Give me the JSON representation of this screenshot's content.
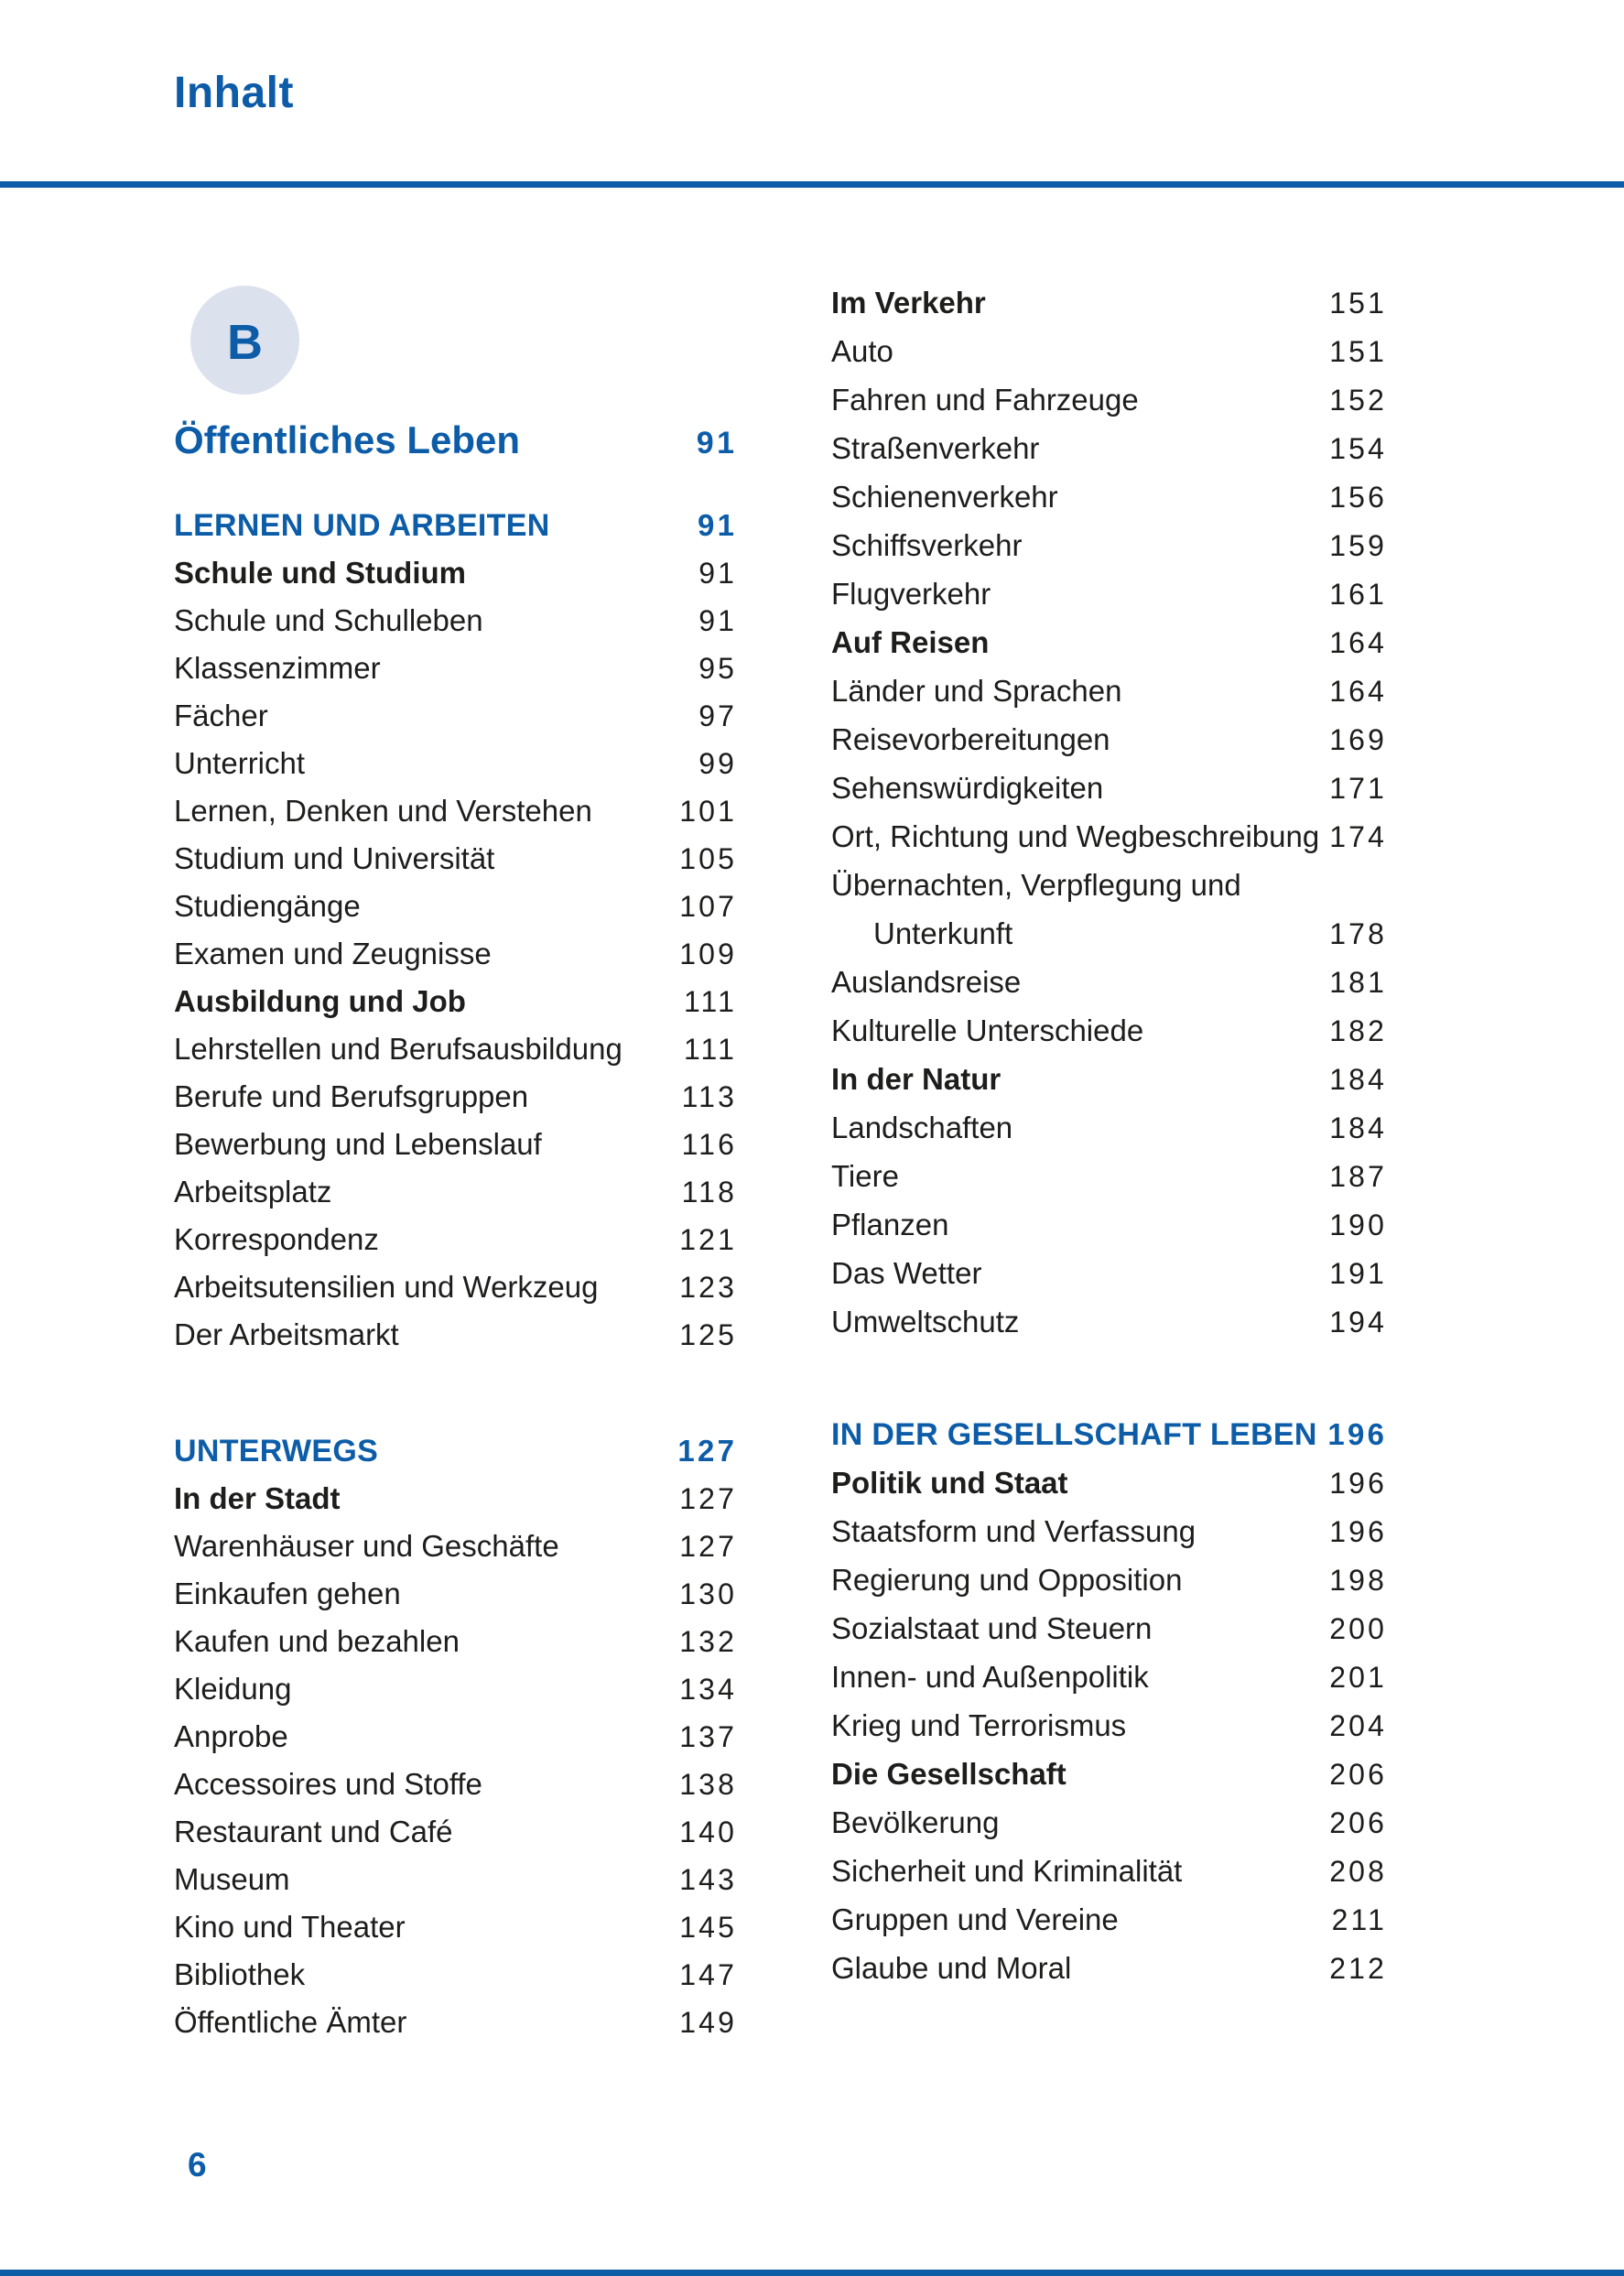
{
  "header": {
    "title": "Inhalt"
  },
  "footer": {
    "page_number": "6"
  },
  "badge": {
    "letter": "B"
  },
  "part": {
    "title": "Öffentliches Leben",
    "page": "91"
  },
  "colors": {
    "accent_blue": "#0c5ca8",
    "text_black": "#1d1d1b",
    "badge_bg": "#dce1ee"
  },
  "columns": {
    "left": {
      "sections": [
        {
          "heading": {
            "label": "LERNEN UND ARBEITEN",
            "page": "91"
          },
          "entries": [
            {
              "label": "Schule und Studium",
              "page": "91",
              "bold": true
            },
            {
              "label": "Schule und Schulleben",
              "page": "91"
            },
            {
              "label": "Klassenzimmer",
              "page": "95"
            },
            {
              "label": "Fächer",
              "page": "97"
            },
            {
              "label": "Unterricht",
              "page": "99"
            },
            {
              "label": "Lernen, Denken und Verstehen",
              "page": "101"
            },
            {
              "label": "Studium und Universität",
              "page": "105"
            },
            {
              "label": "Studiengänge",
              "page": "107"
            },
            {
              "label": "Examen und Zeugnisse",
              "page": "109"
            },
            {
              "label": "Ausbildung und Job",
              "page": "111",
              "bold": true
            },
            {
              "label": "Lehrstellen und Berufsausbildung",
              "page": "111"
            },
            {
              "label": "Berufe und Berufsgruppen",
              "page": "113"
            },
            {
              "label": "Bewerbung und Lebenslauf",
              "page": "116"
            },
            {
              "label": "Arbeitsplatz",
              "page": "118"
            },
            {
              "label": "Korrespondenz",
              "page": "121"
            },
            {
              "label": "Arbeitsutensilien und Werkzeug",
              "page": "123"
            },
            {
              "label": "Der Arbeitsmarkt",
              "page": "125"
            }
          ]
        },
        {
          "heading": {
            "label": "UNTERWEGS",
            "page": "127"
          },
          "entries": [
            {
              "label": "In der Stadt",
              "page": "127",
              "bold": true
            },
            {
              "label": "Warenhäuser und Geschäfte",
              "page": "127"
            },
            {
              "label": "Einkaufen gehen",
              "page": "130"
            },
            {
              "label": "Kaufen und bezahlen",
              "page": "132"
            },
            {
              "label": "Kleidung",
              "page": "134"
            },
            {
              "label": "Anprobe",
              "page": "137"
            },
            {
              "label": "Accessoires und Stoffe",
              "page": "138"
            },
            {
              "label": "Restaurant und Café",
              "page": "140"
            },
            {
              "label": "Museum",
              "page": "143"
            },
            {
              "label": "Kino und Theater",
              "page": "145"
            },
            {
              "label": "Bibliothek",
              "page": "147"
            },
            {
              "label": "Öffentliche Ämter",
              "page": "149"
            }
          ]
        }
      ]
    },
    "right": {
      "sections": [
        {
          "heading": null,
          "entries": [
            {
              "label": "Im Verkehr",
              "page": "151",
              "bold": true
            },
            {
              "label": "Auto",
              "page": "151"
            },
            {
              "label": "Fahren und Fahrzeuge",
              "page": "152"
            },
            {
              "label": "Straßenverkehr",
              "page": "154"
            },
            {
              "label": "Schienenverkehr",
              "page": "156"
            },
            {
              "label": "Schiffsverkehr",
              "page": "159"
            },
            {
              "label": "Flugverkehr",
              "page": "161"
            },
            {
              "label": "Auf Reisen",
              "page": "164",
              "bold": true
            },
            {
              "label": "Länder und Sprachen",
              "page": "164"
            },
            {
              "label": "Reisevorbereitungen",
              "page": "169"
            },
            {
              "label": "Sehenswürdigkeiten",
              "page": "171"
            },
            {
              "label": "Ort, Richtung und Wegbeschreibung",
              "page": "174"
            },
            {
              "label": "Übernachten, Verpflegung und",
              "page": ""
            },
            {
              "label": "Unterkunft",
              "page": "178",
              "indent": true
            },
            {
              "label": "Auslandsreise",
              "page": "181"
            },
            {
              "label": "Kulturelle Unterschiede",
              "page": "182"
            },
            {
              "label": "In der Natur",
              "page": "184",
              "bold": true
            },
            {
              "label": "Landschaften",
              "page": "184"
            },
            {
              "label": "Tiere",
              "page": "187"
            },
            {
              "label": "Pflanzen",
              "page": "190"
            },
            {
              "label": "Das Wetter",
              "page": "191"
            },
            {
              "label": "Umweltschutz",
              "page": "194"
            }
          ]
        },
        {
          "heading": {
            "label": "IN DER GESELLSCHAFT LEBEN",
            "page": "196"
          },
          "entries": [
            {
              "label": "Politik und Staat",
              "page": "196",
              "bold": true
            },
            {
              "label": "Staatsform und Verfassung",
              "page": "196"
            },
            {
              "label": "Regierung und Opposition",
              "page": "198"
            },
            {
              "label": "Sozialstaat und Steuern",
              "page": "200"
            },
            {
              "label": "Innen- und Außenpolitik",
              "page": "201"
            },
            {
              "label": "Krieg und Terrorismus",
              "page": "204"
            },
            {
              "label": "Die Gesellschaft",
              "page": "206",
              "bold": true
            },
            {
              "label": "Bevölkerung",
              "page": "206"
            },
            {
              "label": "Sicherheit und Kriminalität",
              "page": "208"
            },
            {
              "label": "Gruppen und Vereine",
              "page": "211"
            },
            {
              "label": "Glaube und Moral",
              "page": "212"
            }
          ]
        }
      ]
    }
  }
}
